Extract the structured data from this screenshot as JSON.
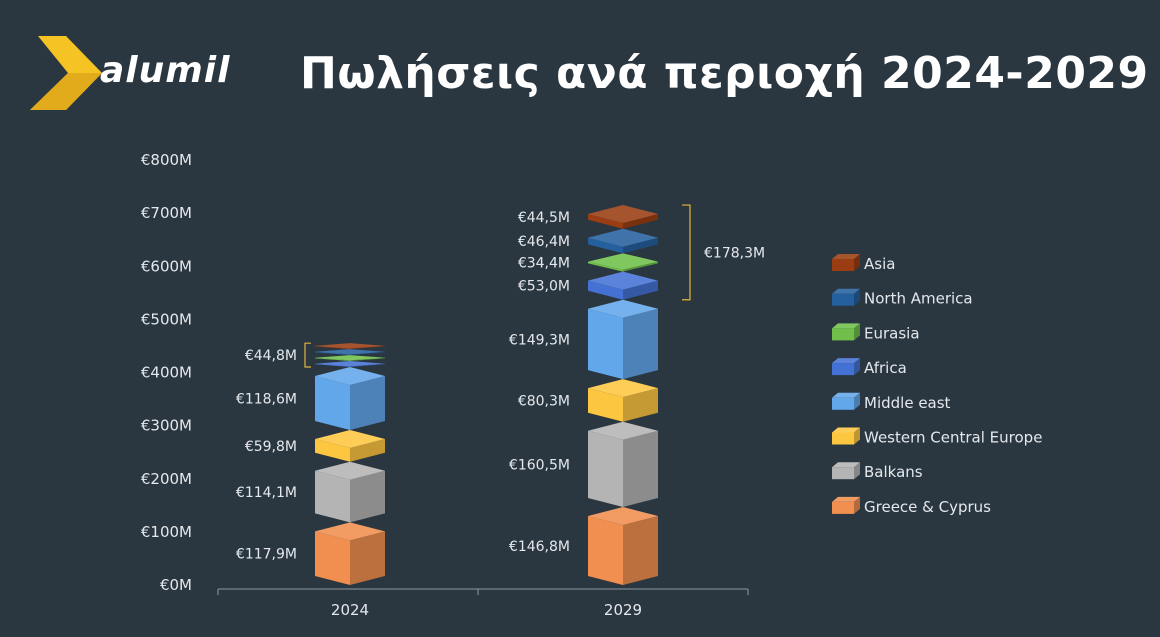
{
  "brand": {
    "name": "alumil"
  },
  "header": {
    "title": "Πωλήσεις ανά περιοχή 2024-2029"
  },
  "colors": {
    "background": "#2b3740",
    "logo_yellow": "#f6c325",
    "bracket": "#e0b53a"
  },
  "chart_data": {
    "type": "bar",
    "stacked": true,
    "style": "3d-stacked-blocks",
    "title": "Πωλήσεις ανά περιοχή 2024-2029",
    "categories": [
      "2024",
      "2029"
    ],
    "ylim": [
      0,
      800
    ],
    "yticks": [
      0,
      100,
      200,
      300,
      400,
      500,
      600,
      700,
      800
    ],
    "ytick_labels": [
      "€0M",
      "€100M",
      "€200M",
      "€300M",
      "€400M",
      "€500M",
      "€600M",
      "€700M",
      "€800M"
    ],
    "legend_position": "right",
    "series": [
      {
        "name": "Greece & Cyprus",
        "color": "#f08f4f",
        "values": [
          117.9,
          146.8
        ],
        "labels": [
          "€117,9M",
          "€146,8M"
        ]
      },
      {
        "name": "Balkans",
        "color": "#b4b4b4",
        "values": [
          114.1,
          160.5
        ],
        "labels": [
          "€114,1M",
          "€160,5M"
        ]
      },
      {
        "name": "Western Central Europe",
        "color": "#fdc640",
        "values": [
          59.8,
          80.3
        ],
        "labels": [
          "€59,8M",
          "€80,3M"
        ]
      },
      {
        "name": "Middle east",
        "color": "#62a7ea",
        "values": [
          118.6,
          149.3
        ],
        "labels": [
          "€118,6M",
          "€149,3M"
        ]
      },
      {
        "name": "Africa",
        "color": "#4472d4",
        "values": [
          11.2,
          53.0
        ],
        "labels": [
          "",
          "€53,0M"
        ]
      },
      {
        "name": "Eurasia",
        "color": "#6fbf4a",
        "values": [
          11.2,
          34.4
        ],
        "labels": [
          "",
          "€34,4M"
        ]
      },
      {
        "name": "North America",
        "color": "#25609e",
        "values": [
          11.2,
          46.4
        ],
        "labels": [
          "",
          "€46,4M"
        ]
      },
      {
        "name": "Asia",
        "color": "#9a3d12",
        "values": [
          11.2,
          44.5
        ],
        "labels": [
          "",
          "€44,5M"
        ]
      }
    ],
    "group_annotations": [
      {
        "category": "2024",
        "from_series": "Africa",
        "to_series": "Asia",
        "label": "€44,8M"
      },
      {
        "category": "2029",
        "from_series": "Africa",
        "to_series": "Asia",
        "label": "€178,3M"
      }
    ]
  }
}
